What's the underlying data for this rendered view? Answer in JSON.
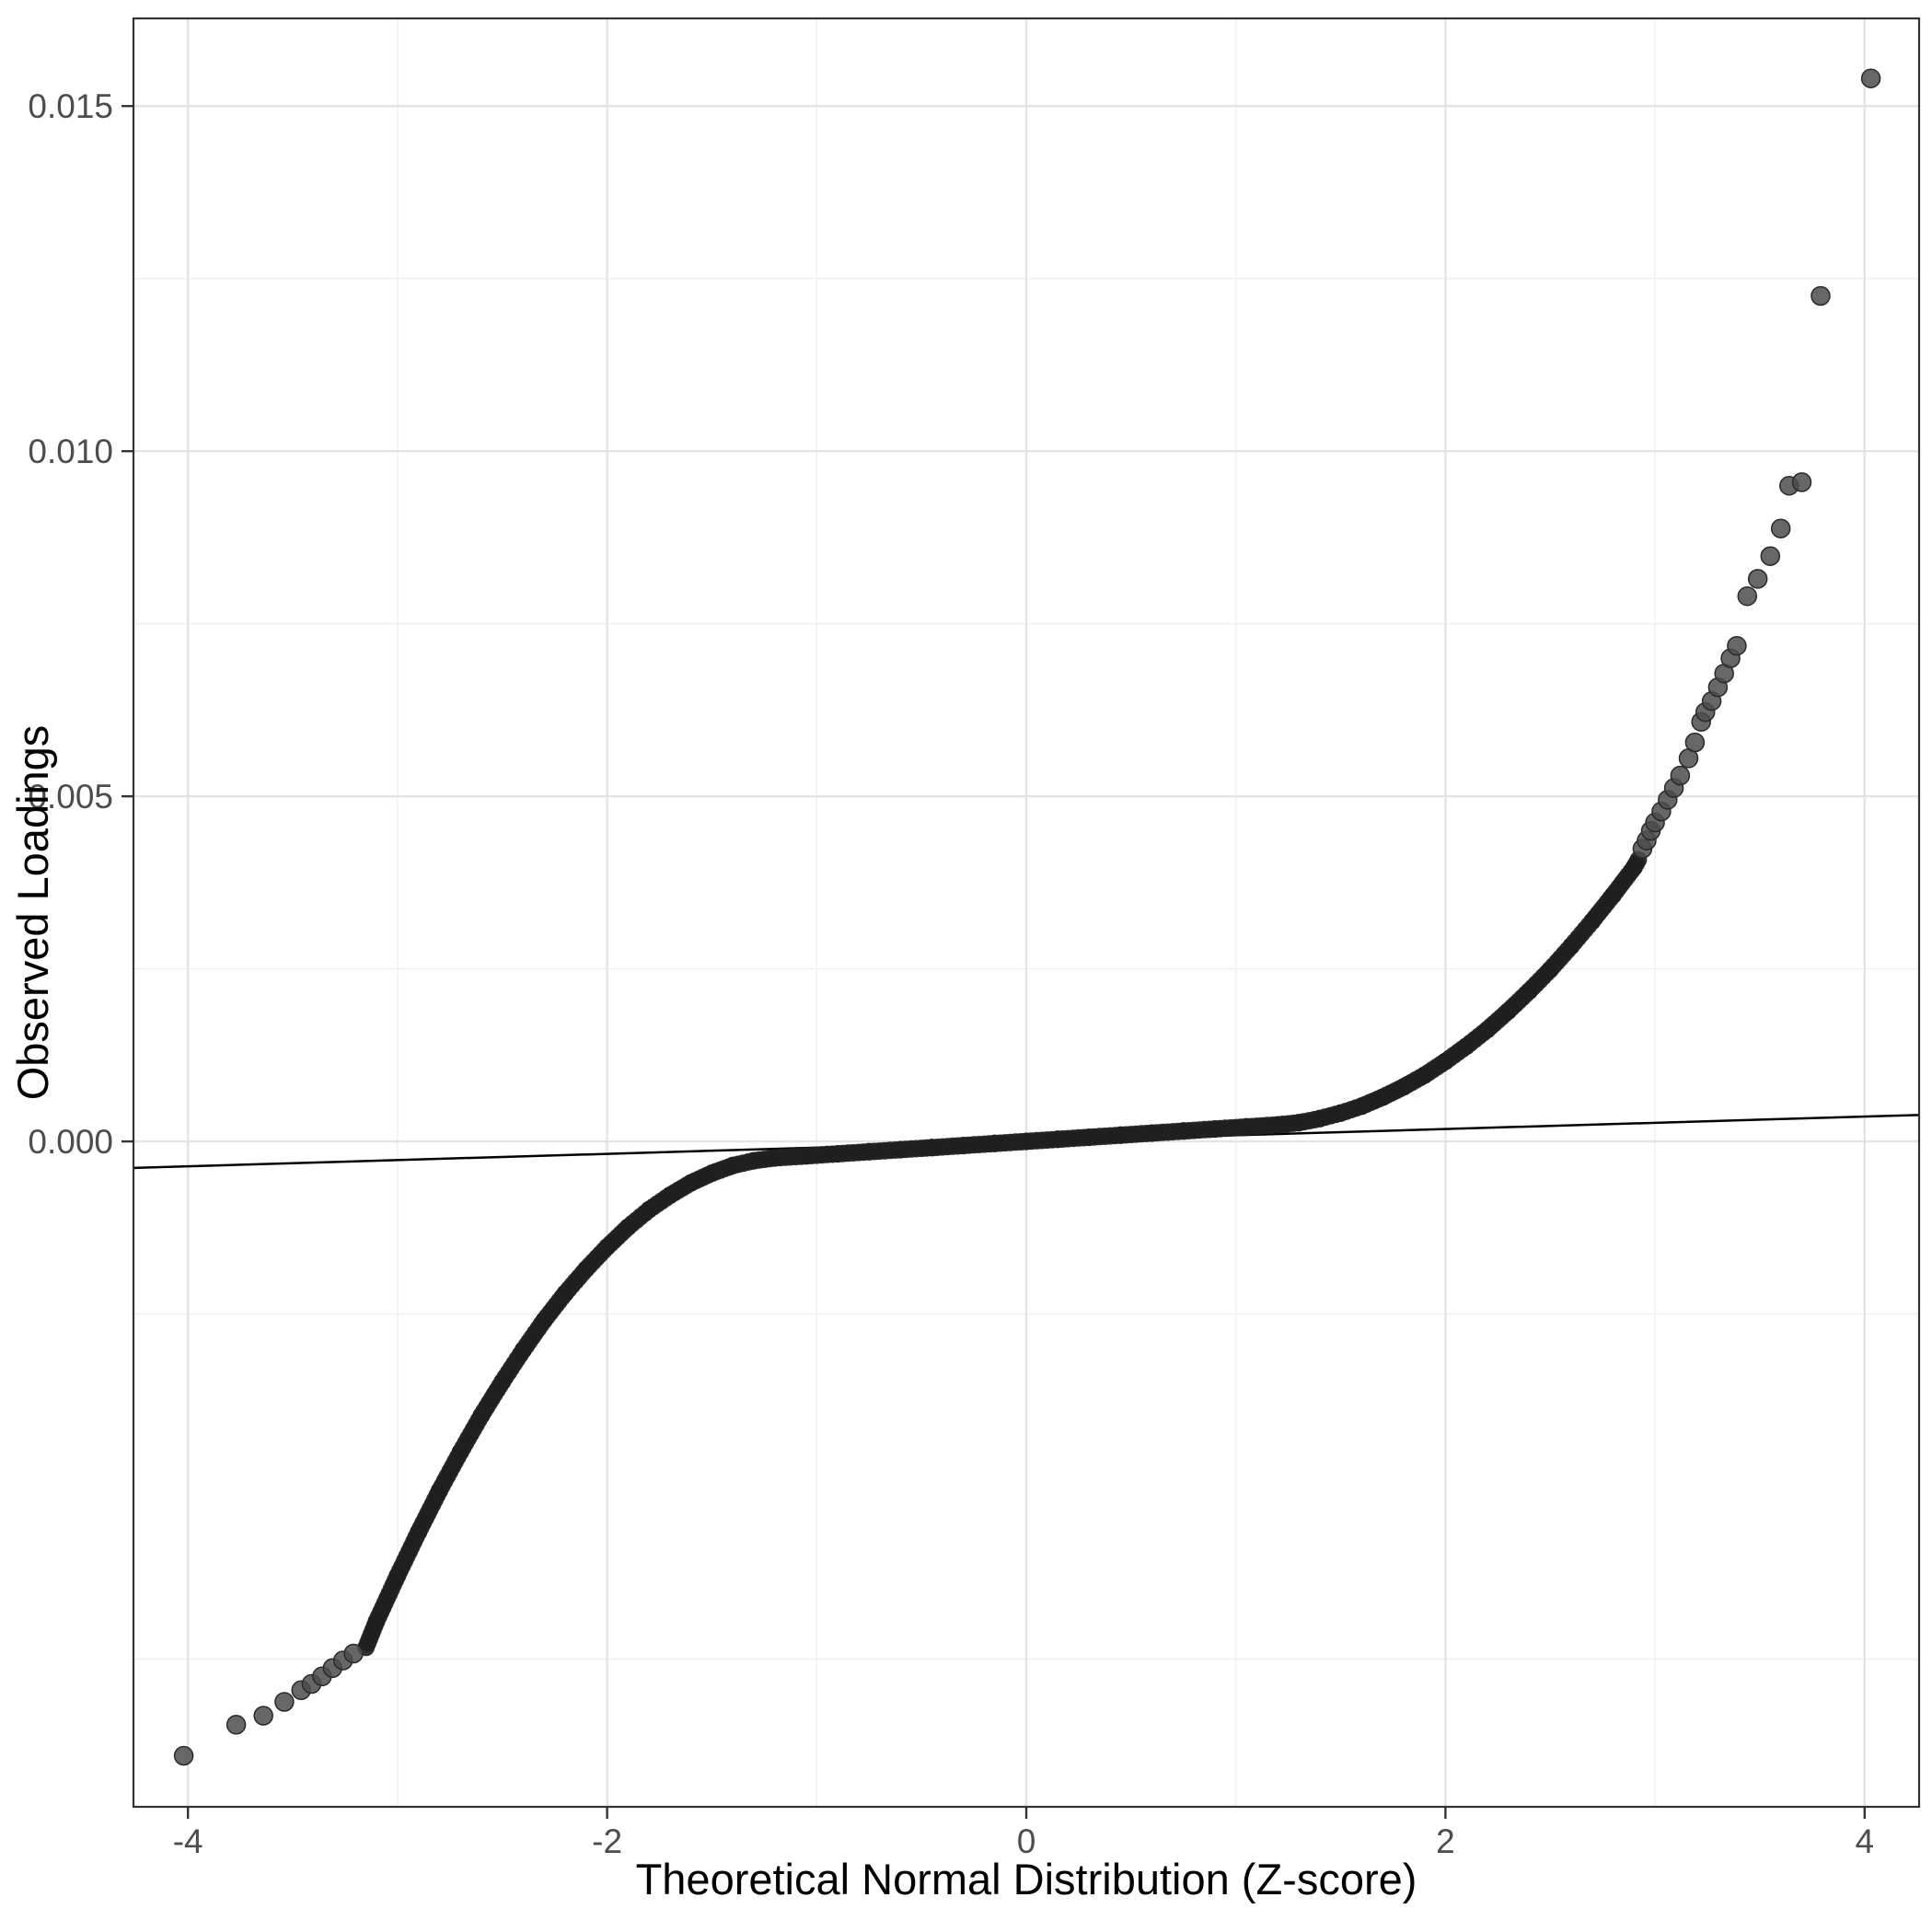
{
  "chart_data": {
    "type": "scatter",
    "title": "",
    "xlabel": "Theoretical Normal Distribution (Z-score)",
    "ylabel": "Observed Loadings",
    "xlim": [
      -4.26,
      4.26
    ],
    "ylim": [
      -0.00964,
      0.01627
    ],
    "grid": true,
    "legend": "none",
    "x_ticks": [
      -4,
      -2,
      0,
      2,
      4
    ],
    "x_tick_labels": [
      "-4",
      "-2",
      "0",
      "2",
      "4"
    ],
    "x_minor_ticks": [
      -3,
      -1,
      1,
      3
    ],
    "y_ticks": [
      0.0,
      0.005,
      0.01,
      0.015
    ],
    "y_tick_labels": [
      "0.000",
      "0.005",
      "0.010",
      "0.015"
    ],
    "y_minor_ticks": [
      -0.0075,
      -0.0025,
      0.0025,
      0.0075,
      0.0125
    ],
    "reference_line": {
      "slope": 9e-05,
      "intercept": 0.0,
      "color": "#000000",
      "width": 2.5
    },
    "band_points": [
      [
        -3.15,
        -0.00733
      ],
      [
        -3.1,
        -0.00695
      ],
      [
        -3.0,
        -0.00629
      ],
      [
        -2.9,
        -0.00566
      ],
      [
        -2.8,
        -0.00506
      ],
      [
        -2.7,
        -0.0045
      ],
      [
        -2.6,
        -0.00397
      ],
      [
        -2.5,
        -0.00348
      ],
      [
        -2.4,
        -0.00302
      ],
      [
        -2.3,
        -0.00259
      ],
      [
        -2.2,
        -0.0022
      ],
      [
        -2.1,
        -0.00185
      ],
      [
        -2.0,
        -0.00153
      ],
      [
        -1.9,
        -0.00124
      ],
      [
        -1.8,
        -0.00099
      ],
      [
        -1.7,
        -0.00078
      ],
      [
        -1.6,
        -0.0006
      ],
      [
        -1.5,
        -0.00046
      ],
      [
        -1.4,
        -0.00035
      ],
      [
        -1.3,
        -0.00028
      ],
      [
        -1.2,
        -0.00024
      ],
      [
        -1.05,
        -0.00021
      ],
      [
        -0.9,
        -0.00018
      ],
      [
        -0.75,
        -0.00015
      ],
      [
        -0.6,
        -0.00012
      ],
      [
        -0.45,
        -9e-05
      ],
      [
        -0.3,
        -6e-05
      ],
      [
        -0.15,
        -3e-05
      ],
      [
        0.0,
        0.0
      ],
      [
        0.15,
        3e-05
      ],
      [
        0.3,
        6e-05
      ],
      [
        0.45,
        9e-05
      ],
      [
        0.6,
        0.00012
      ],
      [
        0.75,
        0.00015
      ],
      [
        0.9,
        0.00018
      ],
      [
        1.05,
        0.00021
      ],
      [
        1.2,
        0.00024
      ],
      [
        1.3,
        0.00027
      ],
      [
        1.4,
        0.00033
      ],
      [
        1.5,
        0.00041
      ],
      [
        1.6,
        0.00051
      ],
      [
        1.7,
        0.00064
      ],
      [
        1.8,
        0.00079
      ],
      [
        1.9,
        0.00096
      ],
      [
        2.0,
        0.00116
      ],
      [
        2.1,
        0.00138
      ],
      [
        2.2,
        0.00162
      ],
      [
        2.3,
        0.00189
      ],
      [
        2.4,
        0.00218
      ],
      [
        2.5,
        0.00249
      ],
      [
        2.6,
        0.00283
      ],
      [
        2.7,
        0.00319
      ],
      [
        2.8,
        0.00357
      ],
      [
        2.9,
        0.00397
      ],
      [
        2.92,
        0.00408
      ]
    ],
    "outlier_points_high": [
      [
        2.94,
        0.00424
      ],
      [
        2.96,
        0.00436
      ],
      [
        2.98,
        0.0045
      ],
      [
        3.0,
        0.00462
      ],
      [
        3.03,
        0.00478
      ],
      [
        3.06,
        0.00495
      ],
      [
        3.09,
        0.00512
      ],
      [
        3.12,
        0.0053
      ],
      [
        3.16,
        0.00555
      ],
      [
        3.19,
        0.00578
      ],
      [
        3.22,
        0.00608
      ],
      [
        3.24,
        0.00622
      ],
      [
        3.27,
        0.00638
      ],
      [
        3.3,
        0.00658
      ],
      [
        3.33,
        0.00678
      ],
      [
        3.36,
        0.007
      ],
      [
        3.39,
        0.00718
      ],
      [
        3.44,
        0.0079
      ],
      [
        3.49,
        0.00815
      ],
      [
        3.55,
        0.00848
      ],
      [
        3.6,
        0.00888
      ],
      [
        3.64,
        0.0095
      ],
      [
        3.7,
        0.00955
      ],
      [
        3.79,
        0.01225
      ],
      [
        4.03,
        0.0154
      ]
    ],
    "outlier_points_low": [
      [
        -4.02,
        -0.0089
      ],
      [
        -3.77,
        -0.00845
      ],
      [
        -3.64,
        -0.00832
      ],
      [
        -3.54,
        -0.00812
      ],
      [
        -3.46,
        -0.00795
      ],
      [
        -3.41,
        -0.00786
      ],
      [
        -3.36,
        -0.00775
      ],
      [
        -3.31,
        -0.00763
      ],
      [
        -3.26,
        -0.00752
      ],
      [
        -3.21,
        -0.00742
      ]
    ],
    "colors": {
      "band_point": "#1f1f1f",
      "outlier_point": "#4c4c4c",
      "grid_major": "#e4e4e4",
      "grid_minor": "#f0f0f0",
      "panel_border": "#333333",
      "tick_mark": "#333333",
      "tick_label": "#4d4d4d",
      "axis_title": "#000000",
      "background": "#ffffff"
    }
  }
}
